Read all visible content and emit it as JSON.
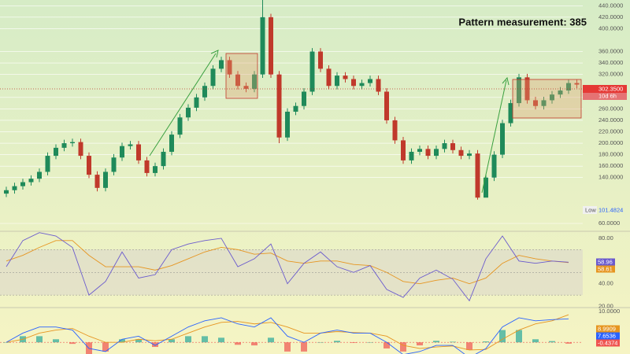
{
  "annotation": "Pattern measurement: 385",
  "price_label": "302.3500",
  "countdown": "10d 6h",
  "low_tag": "Low",
  "low_label": "101.4824",
  "chart_data": [
    {
      "type": "candlestick",
      "up_color": "#1f8a5a",
      "down_color": "#c0392b",
      "ylim": [
        49,
        450
      ],
      "yticks": [
        {
          "value": 440,
          "label": "440.0000"
        },
        {
          "value": 420,
          "label": "420.0000"
        },
        {
          "value": 400,
          "label": "400.0000"
        },
        {
          "value": 360,
          "label": "360.0000"
        },
        {
          "value": 340,
          "label": "340.0000"
        },
        {
          "value": 320,
          "label": "320.0000"
        },
        {
          "value": 280,
          "label": "280.0000"
        },
        {
          "value": 260,
          "label": "260.0000"
        },
        {
          "value": 240,
          "label": "240.0000"
        },
        {
          "value": 220,
          "label": "220.0000"
        },
        {
          "value": 200,
          "label": "200.0000"
        },
        {
          "value": 180,
          "label": "180.0000"
        },
        {
          "value": 160,
          "label": "160.0000"
        },
        {
          "value": 140,
          "label": "140.0000"
        },
        {
          "value": 60,
          "label": "60.0000"
        }
      ],
      "grid": true,
      "open": [
        112,
        118,
        125,
        132,
        138,
        150,
        178,
        192,
        200,
        202,
        178,
        145,
        122,
        150,
        175,
        195,
        198,
        170,
        148,
        160,
        185,
        215,
        245,
        262,
        280,
        300,
        330,
        345,
        320,
        300,
        295,
        320,
        420,
        320,
        210,
        255,
        265,
        290,
        360,
        330,
        300,
        318,
        312,
        300,
        305,
        312,
        290,
        240,
        205,
        170,
        185,
        190,
        178,
        190,
        200,
        188,
        178,
        182,
        105,
        140,
        180,
        235,
        270,
        315,
        275,
        265,
        275,
        285,
        292,
        305
      ],
      "high": [
        124,
        131,
        138,
        144,
        156,
        184,
        198,
        206,
        208,
        208,
        184,
        151,
        156,
        181,
        201,
        204,
        204,
        176,
        166,
        191,
        221,
        251,
        268,
        286,
        306,
        336,
        351,
        351,
        326,
        306,
        326,
        450,
        426,
        326,
        261,
        271,
        296,
        366,
        366,
        336,
        324,
        324,
        318,
        311,
        318,
        318,
        296,
        246,
        211,
        191,
        196,
        196,
        196,
        206,
        206,
        194,
        188,
        188,
        146,
        186,
        241,
        276,
        321,
        321,
        281,
        281,
        291,
        298,
        311,
        311
      ],
      "low": [
        106,
        112,
        119,
        126,
        132,
        144,
        172,
        186,
        194,
        172,
        139,
        116,
        116,
        144,
        169,
        189,
        164,
        142,
        142,
        154,
        179,
        209,
        239,
        256,
        274,
        294,
        324,
        314,
        294,
        289,
        289,
        314,
        314,
        200,
        204,
        249,
        259,
        284,
        324,
        294,
        294,
        306,
        294,
        294,
        299,
        284,
        234,
        199,
        164,
        164,
        179,
        172,
        172,
        184,
        182,
        172,
        172,
        101.4824,
        108,
        134,
        174,
        229,
        264,
        269,
        259,
        259,
        269,
        279,
        286,
        296
      ],
      "close": [
        118,
        125,
        132,
        138,
        150,
        178,
        192,
        200,
        202,
        178,
        145,
        122,
        150,
        175,
        195,
        198,
        170,
        148,
        160,
        185,
        215,
        245,
        262,
        280,
        300,
        330,
        345,
        320,
        300,
        295,
        320,
        420,
        320,
        210,
        255,
        265,
        290,
        360,
        330,
        300,
        318,
        312,
        300,
        305,
        312,
        290,
        240,
        205,
        170,
        185,
        190,
        178,
        190,
        200,
        188,
        178,
        182,
        105,
        140,
        180,
        235,
        270,
        315,
        275,
        265,
        275,
        285,
        292,
        305,
        302.35
      ]
    },
    {
      "type": "line",
      "ylim": [
        19.7,
        84.8
      ],
      "yticks": [
        {
          "value": 80,
          "label": "80.00"
        },
        {
          "value": 40,
          "label": "40.00"
        },
        {
          "value": 20,
          "label": "20.00"
        }
      ],
      "bands": [
        70,
        50,
        30
      ],
      "series": [
        {
          "color": "#6a5acd",
          "values": [
            55,
            78,
            85,
            82,
            72,
            30,
            42,
            68,
            45,
            48,
            70,
            75,
            78,
            80,
            55,
            62,
            75,
            40,
            58,
            68,
            55,
            50,
            56,
            35,
            28,
            45,
            52,
            44,
            25,
            62,
            82,
            60,
            58,
            60,
            58.96
          ]
        },
        {
          "color": "#e69520",
          "values": [
            60,
            65,
            72,
            78,
            78,
            65,
            55,
            55,
            55,
            52,
            56,
            62,
            68,
            72,
            70,
            66,
            67,
            60,
            58,
            60,
            60,
            57,
            56,
            50,
            42,
            40,
            43,
            45,
            40,
            45,
            58,
            65,
            62,
            60,
            58.61
          ]
        }
      ]
    },
    {
      "type": "macd",
      "ylim": [
        -3.8,
        10.8
      ],
      "yticks": [
        {
          "value": 10,
          "label": "10.0000"
        }
      ],
      "histogram": {
        "up_color": "#26a69a",
        "down_color": "#ef5350",
        "values": [
          0,
          2,
          2,
          1,
          -0.5,
          -4,
          -3,
          1,
          1,
          -1.5,
          1,
          2,
          2,
          1.5,
          -0.8,
          -1,
          1.5,
          -3,
          -3,
          0,
          0.5,
          -0.2,
          0,
          -2,
          -3,
          -1,
          0.5,
          0.2,
          -2.5,
          0.3,
          4,
          4,
          1,
          0.4,
          -0.4374
        ]
      },
      "series": [
        {
          "color": "#e69520",
          "values": [
            0,
            1,
            3,
            4,
            4.5,
            2,
            0,
            0,
            1,
            0.5,
            1,
            3,
            5,
            6.5,
            6.8,
            6,
            6.5,
            5,
            3,
            3,
            3.5,
            3.2,
            3,
            2,
            -1,
            -2,
            -1.5,
            -1.2,
            -2.5,
            -2.3,
            1,
            4,
            6,
            7,
            8.9909
          ]
        },
        {
          "color": "#2962ff",
          "values": [
            0,
            3,
            5,
            5,
            4,
            -2,
            -3,
            1,
            2,
            -1,
            2,
            5,
            7,
            8,
            6,
            5,
            8,
            2,
            0,
            3,
            4,
            3,
            3,
            0,
            -4,
            -3,
            -1,
            -1,
            -5,
            -2,
            5,
            8,
            7,
            7.4,
            7.6536
          ]
        }
      ]
    }
  ]
}
